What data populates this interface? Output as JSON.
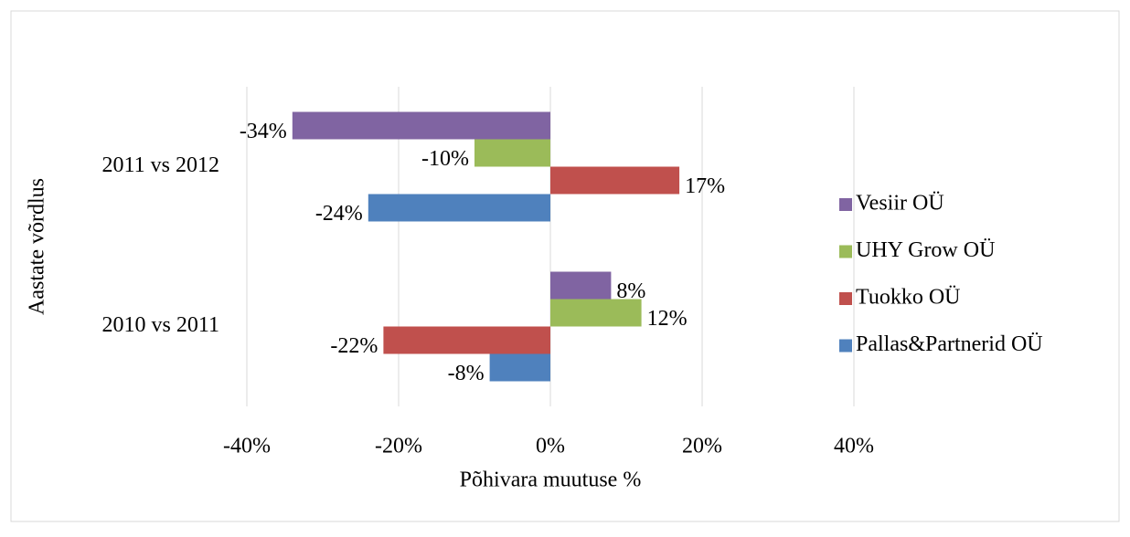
{
  "chart_data": {
    "type": "hbar",
    "x_label": "Põhivara muutuse %",
    "y_label": "Aastate võrdlus",
    "categories": [
      "2011 vs 2012",
      "2010 vs 2011"
    ],
    "series": [
      {
        "name": "Vesiir OÜ",
        "color": "#8064a2",
        "values": [
          -34,
          8
        ],
        "value_labels": [
          "-34%",
          "8%"
        ]
      },
      {
        "name": "UHY Grow OÜ",
        "color": "#9bbb59",
        "values": [
          -10,
          12
        ],
        "value_labels": [
          "-10%",
          "12%"
        ]
      },
      {
        "name": "Tuokko OÜ",
        "color": "#c0504d",
        "values": [
          17,
          -22
        ],
        "value_labels": [
          "17%",
          "-22%"
        ]
      },
      {
        "name": "Pallas&Partnerid OÜ",
        "color": "#4f81bd",
        "values": [
          -24,
          -8
        ],
        "value_labels": [
          "-24%",
          "-8%"
        ]
      }
    ],
    "xlim": [
      -40,
      40
    ],
    "xticks": [
      {
        "value": -40,
        "label": "-40%"
      },
      {
        "value": -20,
        "label": "-20%"
      },
      {
        "value": 0,
        "label": "0%"
      },
      {
        "value": 20,
        "label": "20%"
      },
      {
        "value": 40,
        "label": "40%"
      }
    ],
    "grid": true,
    "legend": "right"
  }
}
